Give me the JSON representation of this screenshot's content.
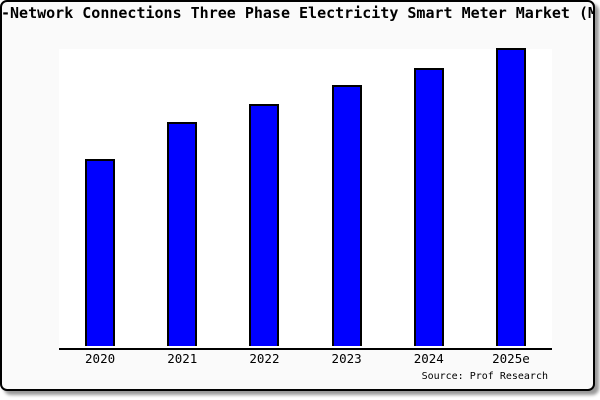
{
  "card": {
    "background": "#fafafa",
    "border_color": "#000000"
  },
  "chart_data": {
    "type": "bar",
    "title": "-Network Connections Three Phase Electricity Smart Meter Market (Mi",
    "title_note": "title clipped at both image edges",
    "categories": [
      "2020",
      "2021",
      "2022",
      "2023",
      "2024",
      "2025e"
    ],
    "values": [
      62.7,
      75.0,
      81.3,
      87.7,
      93.3,
      100.0
    ],
    "values_unit": "relative index (2025e = 100), no y-axis shown",
    "xlabel": "",
    "ylabel": "",
    "ylim": [
      0,
      100.5
    ],
    "grid": false,
    "legend": false,
    "bar_fill": "#0000ff",
    "bar_edge": "#000000",
    "plot_background": "#ffffff",
    "axis_color": "#000000",
    "source_label": "Source: Prof Research"
  }
}
